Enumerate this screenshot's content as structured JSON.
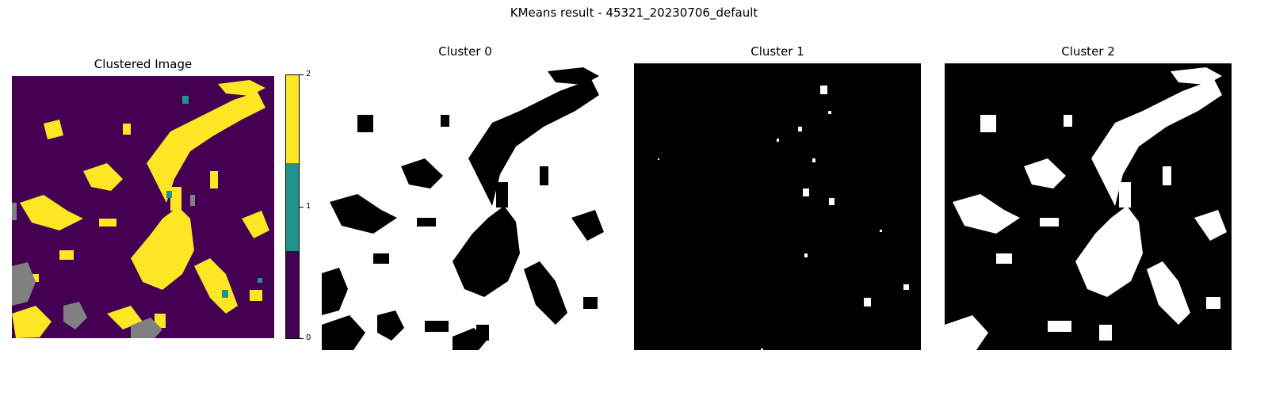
{
  "suptitle": "KMeans result - 45321_20230706_default",
  "panels": [
    {
      "title": "Clustered Image"
    },
    {
      "title": "Cluster 0"
    },
    {
      "title": "Cluster 1"
    },
    {
      "title": "Cluster 2"
    }
  ],
  "colorbar": {
    "ticks": [
      "0",
      "1",
      "2"
    ],
    "colors": [
      "#440154",
      "#21918c",
      "#fde725"
    ]
  },
  "colors": {
    "cluster0": "#440154",
    "cluster1": "#21918c",
    "cluster2": "#fde725",
    "nodata": "#808080",
    "mask_on": "#ffffff",
    "mask_off": "#000000"
  }
}
